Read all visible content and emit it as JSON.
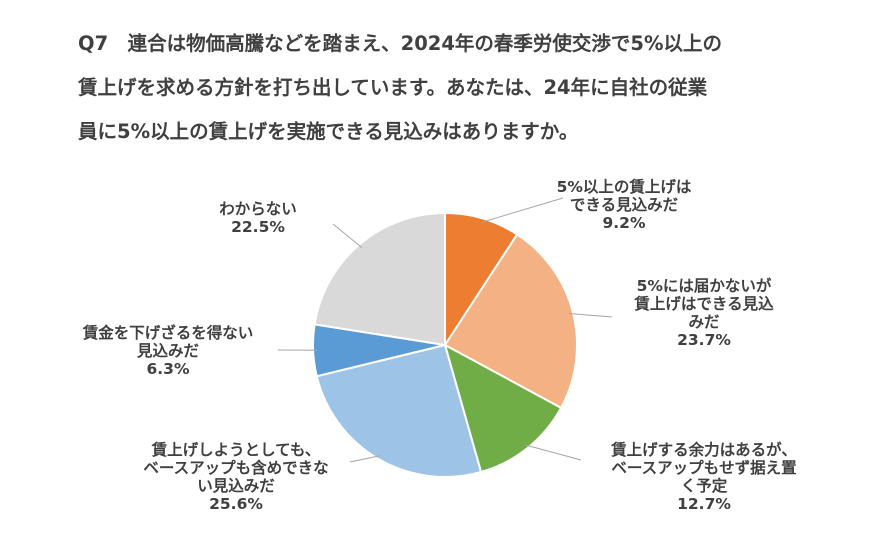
{
  "question": {
    "lines": [
      "Q7　連合は物価高騰などを踏まえ、2024年の春季労使交渉で5%以上の",
      "賃上げを求める方針を打ち出しています。あなたは、24年に自社の従業",
      "員に5%以上の賃上げを実施できる見込みはありますか。"
    ]
  },
  "chart_data": {
    "type": "pie",
    "title": "Q7　連合は物価高騰などを踏まえ、2024年の春季労使交渉で5%以上の賃上げを求める方針を打ち出しています。あなたは、24年に自社の従業員に5%以上の賃上げを実施できる見込みはありますか。",
    "start_angle_deg": 0,
    "direction": "clockwise",
    "slices": [
      {
        "label_lines": [
          "5%以上の賃上げは",
          "できる見込みだ"
        ],
        "value": 9.2,
        "value_label": "9.2%",
        "color": "#ED7D31"
      },
      {
        "label_lines": [
          "5%には届かないが",
          "賃上げはできる見込",
          "みだ"
        ],
        "value": 23.7,
        "value_label": "23.7%",
        "color": "#F4B183"
      },
      {
        "label_lines": [
          "賃上げする余力はあるが、",
          "ベースアップもせず据え置",
          "く予定"
        ],
        "value": 12.7,
        "value_label": "12.7%",
        "color": "#70AD47"
      },
      {
        "label_lines": [
          "賃上げしようとしても、",
          "ベースアップも含めできな",
          "い見込みだ"
        ],
        "value": 25.6,
        "value_label": "25.6%",
        "color": "#9DC3E6"
      },
      {
        "label_lines": [
          "賃金を下げざるを得ない",
          "見込みだ"
        ],
        "value": 6.3,
        "value_label": "6.3%",
        "color": "#5B9BD5"
      },
      {
        "label_lines": [
          "わからない"
        ],
        "value": 22.5,
        "value_label": "22.5%",
        "color": "#D9D9D9"
      }
    ]
  }
}
